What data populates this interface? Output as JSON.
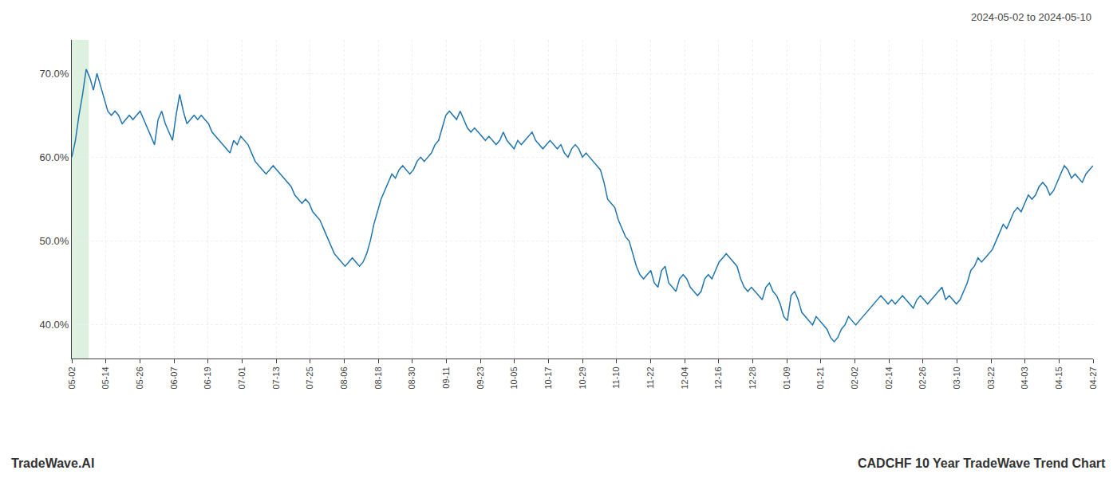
{
  "chart_data": {
    "type": "line",
    "annotations": [
      "2024-05-02 to 2024-05-10",
      "TradeWave.AI",
      "CADCHF 10 Year TradeWave Trend Chart"
    ],
    "color": "#2176ae",
    "grid": true,
    "shaded": {
      "xlim": [
        0,
        0.5
      ],
      "color": "#c8e6c9"
    },
    "ylim": [
      36,
      74
    ],
    "yticks": [
      {
        "value": 40,
        "label": "40.0%"
      },
      {
        "value": 50,
        "label": "50.0%"
      },
      {
        "value": 60,
        "label": "60.0%"
      },
      {
        "value": 70,
        "label": "70.0%"
      }
    ],
    "xlim": [
      0,
      30
    ],
    "xticks": [
      {
        "value": 0,
        "label": "05-02"
      },
      {
        "value": 1,
        "label": "05-14"
      },
      {
        "value": 2,
        "label": "05-26"
      },
      {
        "value": 3,
        "label": "06-07"
      },
      {
        "value": 4,
        "label": "06-19"
      },
      {
        "value": 5,
        "label": "07-01"
      },
      {
        "value": 6,
        "label": "07-13"
      },
      {
        "value": 7,
        "label": "07-25"
      },
      {
        "value": 8,
        "label": "08-06"
      },
      {
        "value": 9,
        "label": "08-18"
      },
      {
        "value": 10,
        "label": "08-30"
      },
      {
        "value": 11,
        "label": "09-11"
      },
      {
        "value": 12,
        "label": "09-23"
      },
      {
        "value": 13,
        "label": "10-05"
      },
      {
        "value": 14,
        "label": "10-17"
      },
      {
        "value": 15,
        "label": "10-29"
      },
      {
        "value": 16,
        "label": "11-10"
      },
      {
        "value": 17,
        "label": "11-22"
      },
      {
        "value": 18,
        "label": "12-04"
      },
      {
        "value": 19,
        "label": "12-16"
      },
      {
        "value": 20,
        "label": "12-28"
      },
      {
        "value": 21,
        "label": "01-09"
      },
      {
        "value": 22,
        "label": "01-21"
      },
      {
        "value": 23,
        "label": "02-02"
      },
      {
        "value": 24,
        "label": "02-14"
      },
      {
        "value": 25,
        "label": "02-26"
      },
      {
        "value": 26,
        "label": "03-10"
      },
      {
        "value": 27,
        "label": "03-22"
      },
      {
        "value": 28,
        "label": "04-03"
      },
      {
        "value": 29,
        "label": "04-15"
      },
      {
        "value": 30,
        "label": "04-27"
      }
    ],
    "values": [
      60.0,
      62.0,
      65.0,
      67.5,
      70.5,
      69.5,
      68.0,
      70.0,
      68.5,
      67.0,
      65.5,
      65.0,
      65.5,
      65.0,
      64.0,
      64.5,
      65.0,
      64.5,
      65.0,
      65.5,
      64.5,
      63.5,
      62.5,
      61.5,
      64.5,
      65.5,
      64.0,
      63.0,
      62.0,
      65.0,
      67.5,
      65.5,
      64.0,
      64.5,
      65.0,
      64.5,
      65.0,
      64.5,
      64.0,
      63.0,
      62.5,
      62.0,
      61.5,
      61.0,
      60.5,
      62.0,
      61.5,
      62.5,
      62.0,
      61.5,
      60.5,
      59.5,
      59.0,
      58.5,
      58.0,
      58.5,
      59.0,
      58.5,
      58.0,
      57.5,
      57.0,
      56.5,
      55.5,
      55.0,
      54.5,
      55.0,
      54.5,
      53.5,
      53.0,
      52.5,
      51.5,
      50.5,
      49.5,
      48.5,
      48.0,
      47.5,
      47.0,
      47.5,
      48.0,
      47.5,
      47.0,
      47.5,
      48.5,
      50.0,
      52.0,
      53.5,
      55.0,
      56.0,
      57.0,
      58.0,
      57.5,
      58.5,
      59.0,
      58.5,
      58.0,
      58.5,
      59.5,
      60.0,
      59.5,
      60.0,
      60.5,
      61.5,
      62.0,
      63.5,
      65.0,
      65.5,
      65.0,
      64.5,
      65.5,
      64.5,
      63.5,
      63.0,
      63.5,
      63.0,
      62.5,
      62.0,
      62.5,
      62.0,
      61.5,
      62.0,
      63.0,
      62.0,
      61.5,
      61.0,
      62.0,
      61.5,
      62.0,
      62.5,
      63.0,
      62.0,
      61.5,
      61.0,
      61.5,
      62.0,
      61.5,
      61.0,
      61.5,
      60.5,
      60.0,
      61.0,
      61.5,
      61.0,
      60.0,
      60.5,
      60.0,
      59.5,
      59.0,
      58.5,
      57.0,
      55.0,
      54.5,
      54.0,
      52.5,
      51.5,
      50.5,
      50.0,
      48.5,
      47.0,
      46.0,
      45.5,
      46.0,
      46.5,
      45.0,
      44.5,
      46.5,
      47.0,
      45.0,
      44.5,
      44.0,
      45.5,
      46.0,
      45.5,
      44.5,
      44.0,
      43.5,
      44.0,
      45.5,
      46.0,
      45.5,
      46.5,
      47.5,
      48.0,
      48.5,
      48.0,
      47.5,
      47.0,
      45.5,
      44.5,
      44.0,
      44.5,
      44.0,
      43.5,
      43.0,
      44.5,
      45.0,
      44.0,
      43.5,
      42.5,
      41.0,
      40.5,
      43.5,
      44.0,
      43.0,
      41.5,
      41.0,
      40.5,
      40.0,
      41.0,
      40.5,
      40.0,
      39.5,
      38.5,
      38.0,
      38.5,
      39.5,
      40.0,
      41.0,
      40.5,
      40.0,
      40.5,
      41.0,
      41.5,
      42.0,
      42.5,
      43.0,
      43.5,
      43.0,
      42.5,
      43.0,
      42.5,
      43.0,
      43.5,
      43.0,
      42.5,
      42.0,
      43.0,
      43.5,
      43.0,
      42.5,
      43.0,
      43.5,
      44.0,
      44.5,
      43.0,
      43.5,
      43.0,
      42.5,
      43.0,
      44.0,
      45.0,
      46.5,
      47.0,
      48.0,
      47.5,
      48.0,
      48.5,
      49.0,
      50.0,
      51.0,
      52.0,
      51.5,
      52.5,
      53.5,
      54.0,
      53.5,
      54.5,
      55.5,
      55.0,
      55.5,
      56.5,
      57.0,
      56.5,
      55.5,
      56.0,
      57.0,
      58.0,
      59.0,
      58.5,
      57.5,
      58.0,
      57.5,
      57.0,
      58.0,
      58.5,
      59.0
    ]
  }
}
